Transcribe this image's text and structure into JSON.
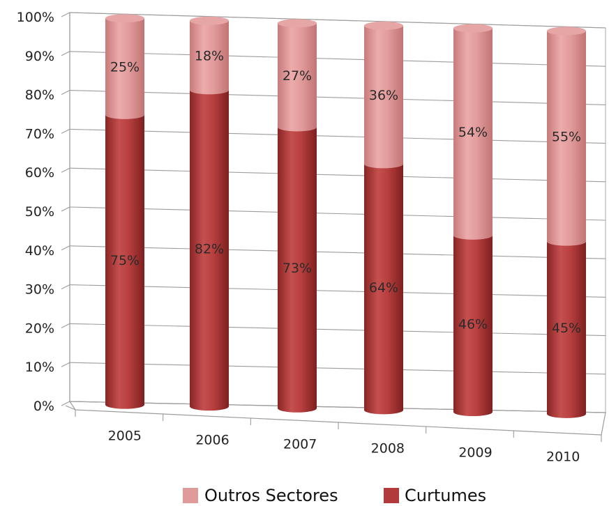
{
  "chart_data": {
    "type": "bar",
    "stacked": true,
    "style": "3d-cylinder",
    "categories": [
      "2005",
      "2006",
      "2007",
      "2008",
      "2009",
      "2010"
    ],
    "series": [
      {
        "name": "Curtumes",
        "values": [
          75,
          82,
          73,
          64,
          46,
          45
        ],
        "labels": [
          "75%",
          "82%",
          "73%",
          "64%",
          "46%",
          "45%"
        ],
        "color": "#b23a3a"
      },
      {
        "name": "Outros Sectores",
        "values": [
          25,
          18,
          27,
          36,
          54,
          55
        ],
        "labels": [
          "25%",
          "18%",
          "27%",
          "36%",
          "54%",
          "55%"
        ],
        "color": "#df9a9a"
      }
    ],
    "yticks": [
      "0%",
      "10%",
      "20%",
      "30%",
      "40%",
      "50%",
      "60%",
      "70%",
      "80%",
      "90%",
      "100%"
    ],
    "ylim": [
      0,
      100
    ],
    "grid": true,
    "legend_position": "bottom"
  }
}
